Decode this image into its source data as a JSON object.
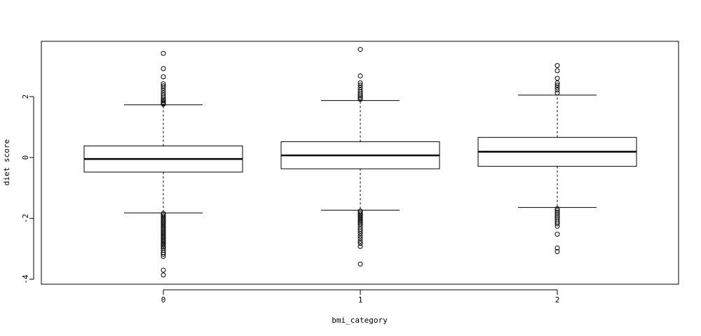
{
  "chart_data": {
    "type": "boxplot",
    "xlabel": "bmi_category",
    "ylabel": "diet score",
    "ylim": [
      -4.1,
      3.75
    ],
    "yticks": [
      -4,
      -2,
      0,
      2
    ],
    "categories": [
      "0",
      "1",
      "2"
    ],
    "boxes": [
      {
        "category": "0",
        "whisker_low": -1.82,
        "q1": -0.48,
        "median": -0.05,
        "q3": 0.38,
        "whisker_high": 1.73,
        "outliers": [
          3.42,
          2.92,
          2.65,
          2.42,
          2.35,
          2.28,
          2.2,
          2.12,
          2.05,
          1.98,
          1.92,
          1.87,
          1.82,
          1.78,
          1.75,
          -1.84,
          -1.88,
          -1.93,
          -1.98,
          -2.03,
          -2.08,
          -2.13,
          -2.18,
          -2.23,
          -2.28,
          -2.33,
          -2.38,
          -2.43,
          -2.48,
          -2.53,
          -2.58,
          -2.63,
          -2.68,
          -2.73,
          -2.78,
          -2.83,
          -2.88,
          -2.93,
          -2.98,
          -3.05,
          -3.12,
          -3.18,
          -3.25,
          -3.7,
          -3.86
        ]
      },
      {
        "category": "1",
        "whisker_low": -1.73,
        "q1": -0.37,
        "median": 0.07,
        "q3": 0.52,
        "whisker_high": 1.87,
        "outliers": [
          3.55,
          2.68,
          2.45,
          2.38,
          2.3,
          2.22,
          2.15,
          2.08,
          2.02,
          1.96,
          1.91,
          -1.76,
          -1.8,
          -1.85,
          -1.9,
          -1.95,
          -2.0,
          -2.05,
          -2.1,
          -2.15,
          -2.2,
          -2.28,
          -2.35,
          -2.42,
          -2.5,
          -2.58,
          -2.66,
          -2.75,
          -2.82,
          -2.92,
          -3.5
        ]
      },
      {
        "category": "2",
        "whisker_low": -1.64,
        "q1": -0.29,
        "median": 0.19,
        "q3": 0.66,
        "whisker_high": 2.05,
        "outliers": [
          3.02,
          2.85,
          2.6,
          2.45,
          2.38,
          2.3,
          2.22,
          2.12,
          -1.68,
          -1.74,
          -1.8,
          -1.86,
          -1.92,
          -1.98,
          -2.05,
          -2.12,
          -2.18,
          -2.26,
          -2.52,
          -2.97,
          -3.09
        ]
      }
    ]
  }
}
